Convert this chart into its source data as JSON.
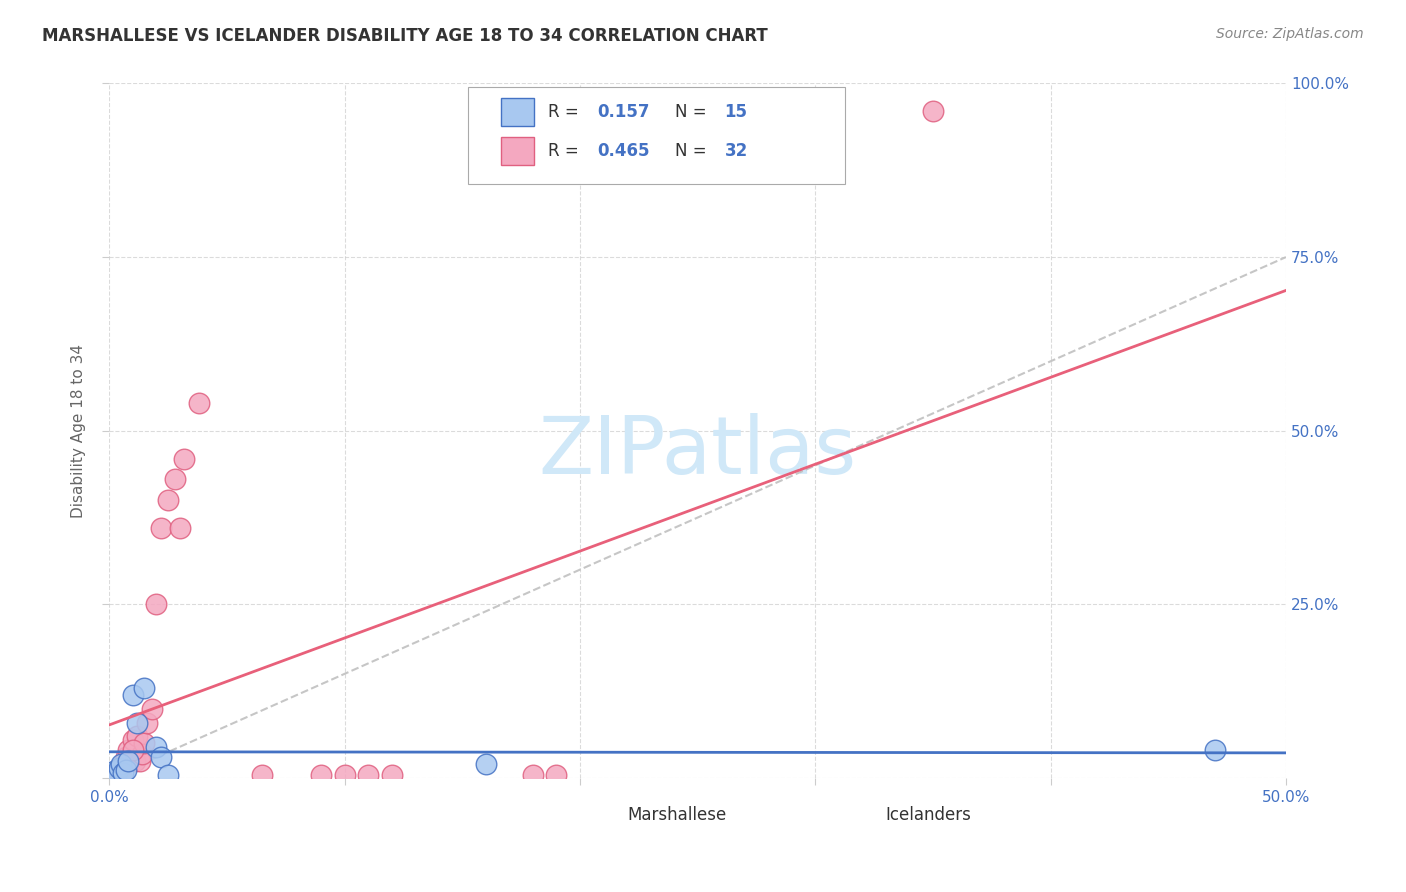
{
  "title": "MARSHALLESE VS ICELANDER DISABILITY AGE 18 TO 34 CORRELATION CHART",
  "source": "Source: ZipAtlas.com",
  "ylabel": "Disability Age 18 to 34",
  "xlim": [
    0.0,
    0.5
  ],
  "ylim": [
    0.0,
    1.0
  ],
  "xticks": [
    0.0,
    0.1,
    0.2,
    0.3,
    0.4,
    0.5
  ],
  "xtick_labels_show": [
    "0.0%",
    "",
    "",
    "",
    "",
    "50.0%"
  ],
  "yticks": [
    0.0,
    0.25,
    0.5,
    0.75,
    1.0
  ],
  "ytick_labels": [
    "",
    "25.0%",
    "50.0%",
    "75.0%",
    "100.0%"
  ],
  "marshallese_x": [
    0.002,
    0.003,
    0.004,
    0.005,
    0.006,
    0.007,
    0.008,
    0.01,
    0.012,
    0.015,
    0.02,
    0.022,
    0.025,
    0.16,
    0.47
  ],
  "marshallese_y": [
    0.01,
    0.005,
    0.015,
    0.02,
    0.008,
    0.012,
    0.025,
    0.12,
    0.08,
    0.13,
    0.045,
    0.03,
    0.005,
    0.02,
    0.04
  ],
  "icelander_x": [
    0.002,
    0.003,
    0.004,
    0.005,
    0.006,
    0.007,
    0.008,
    0.01,
    0.011,
    0.012,
    0.013,
    0.014,
    0.015,
    0.016,
    0.018,
    0.02,
    0.022,
    0.025,
    0.028,
    0.03,
    0.032,
    0.038,
    0.065,
    0.09,
    0.1,
    0.11,
    0.12,
    0.18,
    0.19,
    0.01,
    0.35,
    0.005
  ],
  "icelander_y": [
    0.005,
    0.008,
    0.01,
    0.015,
    0.02,
    0.03,
    0.04,
    0.055,
    0.025,
    0.06,
    0.025,
    0.035,
    0.05,
    0.08,
    0.1,
    0.25,
    0.36,
    0.4,
    0.43,
    0.36,
    0.46,
    0.54,
    0.005,
    0.005,
    0.005,
    0.005,
    0.005,
    0.005,
    0.005,
    0.04,
    0.96,
    0.005
  ],
  "marshallese_color": "#A8C8F0",
  "icelander_color": "#F4A8C0",
  "marshallese_edge_color": "#4472C4",
  "icelander_edge_color": "#E06080",
  "marshallese_line_color": "#4472C4",
  "icelander_line_color": "#E8607A",
  "reference_line_color": "#C0C0C0",
  "R_marshallese": 0.157,
  "N_marshallese": 15,
  "R_icelander": 0.465,
  "N_icelander": 32,
  "legend_text_color": "#333333",
  "legend_value_color": "#4472C4",
  "watermark_text": "ZIPatlas",
  "watermark_color": "#D0E8F8",
  "background_color": "#FFFFFF",
  "grid_color": "#CCCCCC",
  "tick_color": "#4472C4",
  "ylabel_color": "#666666",
  "title_color": "#333333",
  "source_color": "#888888"
}
